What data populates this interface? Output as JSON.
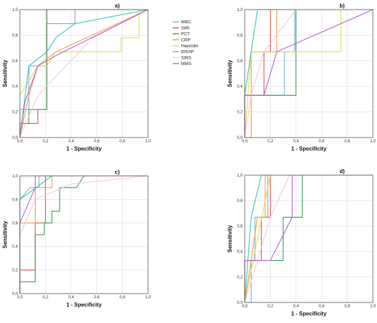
{
  "colors": {
    "WBC": "#6aaed6",
    "SIRI": "#e24a4a",
    "PCT": "#2e9a4c",
    "CRP": "#f39a3c",
    "Hepcidin": "#e3dd3a",
    "BISAP": "#2cc7b6",
    "SIRS": "#f7c6dc",
    "MMS": "#b45ed1"
  },
  "legend": [
    "WBC",
    "SIRI",
    "PCT",
    "CRP",
    "Hepcidin",
    "BISAP",
    "SIRS",
    "MMS"
  ],
  "chart_data": [
    {
      "type": "line",
      "panel": "a)",
      "xlabel": "1 - Specificity",
      "ylabel": "Sensitivity",
      "xlim": [
        0,
        1
      ],
      "ylim": [
        0,
        1
      ],
      "xticks": [
        "0,0",
        "0,2",
        "0,4",
        "0,6",
        "0,8",
        "1,0"
      ],
      "yticks": [
        "0,0",
        "0,2",
        "0,4",
        "0,6",
        "0,8",
        "1,0"
      ],
      "grid": true,
      "series": [
        {
          "name": "WBC",
          "points": [
            [
              0,
              0
            ],
            [
              0,
              0.22
            ],
            [
              0.07,
              0.22
            ],
            [
              0.07,
              0.56
            ],
            [
              0.21,
              0.56
            ],
            [
              0.21,
              0.89
            ],
            [
              0.43,
              0.89
            ],
            [
              0.43,
              1
            ],
            [
              1,
              1
            ]
          ]
        },
        {
          "name": "SIRI",
          "points": [
            [
              0,
              0
            ],
            [
              0,
              0.11
            ],
            [
              0.14,
              0.11
            ],
            [
              0.14,
              0.22
            ],
            [
              0.21,
              0.22
            ],
            [
              0.21,
              1
            ],
            [
              1,
              1
            ]
          ]
        },
        {
          "name": "PCT",
          "points": [
            [
              0,
              0
            ],
            [
              0,
              0.11
            ],
            [
              0.07,
              0.11
            ],
            [
              0.07,
              0.22
            ],
            [
              0.21,
              0.22
            ],
            [
              0.21,
              1
            ],
            [
              1,
              1
            ]
          ]
        },
        {
          "name": "CRP",
          "points": [
            [
              0,
              0
            ],
            [
              0.07,
              0.33
            ],
            [
              0.14,
              0.56
            ],
            [
              0.28,
              0.67
            ],
            [
              1,
              1
            ]
          ]
        },
        {
          "name": "Hepcidin",
          "points": [
            [
              0,
              0.33
            ],
            [
              0.14,
              0.56
            ],
            [
              0.21,
              0.56
            ],
            [
              0.28,
              0.67
            ],
            [
              0.79,
              0.67
            ],
            [
              0.79,
              0.78
            ],
            [
              0.93,
              0.78
            ],
            [
              0.93,
              1
            ],
            [
              1,
              1
            ]
          ]
        },
        {
          "name": "BISAP",
          "points": [
            [
              0,
              0
            ],
            [
              0.07,
              0.56
            ],
            [
              0.21,
              0.67
            ],
            [
              0.28,
              0.78
            ],
            [
              0.43,
              0.89
            ],
            [
              1,
              1
            ]
          ]
        },
        {
          "name": "SIRS",
          "points": [
            [
              0,
              0
            ],
            [
              0.14,
              0.33
            ],
            [
              0.36,
              0.56
            ],
            [
              0.57,
              0.78
            ],
            [
              1,
              1
            ]
          ]
        },
        {
          "name": "MMS",
          "points": [
            [
              0,
              0
            ],
            [
              0.04,
              0.28
            ],
            [
              0.14,
              0.56
            ],
            [
              0.28,
              0.64
            ],
            [
              1,
              1
            ]
          ]
        }
      ]
    },
    {
      "type": "line",
      "panel": "b)",
      "xlabel": "1 - Specificity",
      "ylabel": "Sensitivity",
      "xlim": [
        0,
        1
      ],
      "ylim": [
        0,
        1
      ],
      "xticks": [
        "0,0",
        "0,2",
        "0,4",
        "0,6",
        "0,8",
        "1,0"
      ],
      "yticks": [
        "0,0",
        "0,2",
        "0,4",
        "0,6",
        "0,8",
        "1,0"
      ],
      "grid": true,
      "series": [
        {
          "name": "WBC",
          "points": [
            [
              0,
              0
            ],
            [
              0,
              0.33
            ],
            [
              0.31,
              0.33
            ],
            [
              0.31,
              0.67
            ],
            [
              0.39,
              0.67
            ],
            [
              0.39,
              1
            ],
            [
              1,
              1
            ]
          ]
        },
        {
          "name": "SIRI",
          "points": [
            [
              0,
              0
            ],
            [
              0,
              0.33
            ],
            [
              0.15,
              0.33
            ],
            [
              0.15,
              0.67
            ],
            [
              0.2,
              0.67
            ],
            [
              0.2,
              1
            ],
            [
              1,
              1
            ]
          ]
        },
        {
          "name": "PCT",
          "points": [
            [
              0,
              0
            ],
            [
              0,
              0.33
            ],
            [
              0.4,
              0.33
            ],
            [
              0.4,
              1
            ],
            [
              1,
              1
            ]
          ]
        },
        {
          "name": "CRP",
          "points": [
            [
              0,
              0
            ],
            [
              0.05,
              0
            ],
            [
              0.05,
              0.67
            ],
            [
              0.25,
              0.67
            ],
            [
              0.25,
              1
            ],
            [
              1,
              1
            ]
          ]
        },
        {
          "name": "Hepcidin",
          "points": [
            [
              0,
              0
            ],
            [
              0.05,
              0.67
            ],
            [
              0.75,
              0.67
            ],
            [
              0.75,
              1
            ],
            [
              1,
              1
            ]
          ]
        },
        {
          "name": "BISAP",
          "points": [
            [
              0,
              0
            ],
            [
              0,
              0.33
            ],
            [
              0.05,
              0.67
            ],
            [
              0.1,
              1
            ],
            [
              1,
              1
            ]
          ]
        },
        {
          "name": "SIRS",
          "points": [
            [
              0,
              0
            ],
            [
              0.05,
              0.33
            ],
            [
              0.15,
              0.67
            ],
            [
              0.4,
              1
            ],
            [
              1,
              1
            ]
          ]
        },
        {
          "name": "MMS",
          "points": [
            [
              0,
              0
            ],
            [
              0,
              0.33
            ],
            [
              0.15,
              0.33
            ],
            [
              0.25,
              0.67
            ],
            [
              1,
              1
            ]
          ]
        }
      ]
    },
    {
      "type": "line",
      "panel": "c)",
      "xlabel": "1 - Specificity",
      "ylabel": "Sensitivity",
      "xlim": [
        0,
        1
      ],
      "ylim": [
        0,
        1
      ],
      "xticks": [
        "0,0",
        "0,2",
        "0,4",
        "0,6",
        "0,8",
        "1,0"
      ],
      "yticks": [
        "0,0",
        "0,2",
        "0,4",
        "0,6",
        "0,8",
        "1,0"
      ],
      "grid": true,
      "series": [
        {
          "name": "WBC",
          "points": [
            [
              0,
              0
            ],
            [
              0,
              0.8
            ],
            [
              0.08,
              0.9
            ],
            [
              0.15,
              0.9
            ],
            [
              0.15,
              1
            ],
            [
              1,
              1
            ]
          ]
        },
        {
          "name": "SIRI",
          "points": [
            [
              0,
              0
            ],
            [
              0,
              0.2
            ],
            [
              0.12,
              0.2
            ],
            [
              0.12,
              0.6
            ],
            [
              0.2,
              0.6
            ],
            [
              0.2,
              1
            ],
            [
              1,
              1
            ]
          ]
        },
        {
          "name": "PCT",
          "points": [
            [
              0,
              0
            ],
            [
              0,
              0.1
            ],
            [
              0.12,
              0.1
            ],
            [
              0.12,
              0.5
            ],
            [
              0.19,
              0.5
            ],
            [
              0.19,
              0.6
            ],
            [
              0.25,
              0.6
            ],
            [
              0.25,
              0.7
            ],
            [
              0.31,
              0.7
            ],
            [
              0.31,
              0.9
            ],
            [
              0.44,
              0.9
            ],
            [
              0.5,
              1
            ],
            [
              1,
              1
            ]
          ]
        },
        {
          "name": "CRP",
          "points": [
            [
              0,
              0
            ],
            [
              0,
              0.6
            ],
            [
              0.12,
              0.6
            ],
            [
              0.12,
              0.9
            ],
            [
              0.25,
              0.9
            ],
            [
              0.25,
              1
            ],
            [
              1,
              1
            ]
          ]
        },
        {
          "name": "Hepcidin",
          "points": [
            [
              0,
              0.6
            ],
            [
              0,
              1
            ],
            [
              1,
              1
            ]
          ]
        },
        {
          "name": "BISAP",
          "points": [
            [
              0,
              0
            ],
            [
              0,
              0.8
            ],
            [
              0.25,
              1
            ],
            [
              1,
              1
            ]
          ]
        },
        {
          "name": "SIRS",
          "points": [
            [
              0,
              0.5
            ],
            [
              0.12,
              0.8
            ],
            [
              0.4,
              0.93
            ],
            [
              1,
              1
            ]
          ]
        },
        {
          "name": "MMS",
          "points": [
            [
              0,
              0
            ],
            [
              0,
              0.6
            ],
            [
              0.12,
              0.9
            ],
            [
              0.12,
              1
            ],
            [
              1,
              1
            ]
          ]
        }
      ]
    },
    {
      "type": "line",
      "panel": "d)",
      "xlabel": "1 - Specificity",
      "ylabel": "Sensitivity",
      "xlim": [
        0,
        1
      ],
      "ylim": [
        0,
        1
      ],
      "xticks": [
        "0,0",
        "0,2",
        "0,4",
        "0,6",
        "0,8",
        "1,0"
      ],
      "yticks": [
        "0,0",
        "0,2",
        "0,4",
        "0,6",
        "0,8",
        "1,0"
      ],
      "grid": true,
      "series": [
        {
          "name": "WBC",
          "points": [
            [
              0,
              0
            ],
            [
              0.05,
              0
            ],
            [
              0.05,
              0.33
            ],
            [
              0.08,
              0.33
            ],
            [
              0.08,
              0.67
            ],
            [
              0.18,
              0.67
            ],
            [
              0.18,
              1
            ],
            [
              1,
              1
            ]
          ]
        },
        {
          "name": "SIRI",
          "points": [
            [
              0,
              0
            ],
            [
              0,
              0.33
            ],
            [
              0.13,
              0.33
            ],
            [
              0.13,
              0.67
            ],
            [
              0.2,
              0.67
            ],
            [
              0.2,
              1
            ],
            [
              1,
              1
            ]
          ]
        },
        {
          "name": "PCT",
          "points": [
            [
              0,
              0
            ],
            [
              0,
              0.33
            ],
            [
              0.3,
              0.33
            ],
            [
              0.3,
              0.67
            ],
            [
              0.45,
              0.67
            ],
            [
              0.45,
              1
            ],
            [
              1,
              1
            ]
          ]
        },
        {
          "name": "CRP",
          "points": [
            [
              0,
              0
            ],
            [
              0.1,
              0.67
            ],
            [
              0.16,
              0.67
            ],
            [
              0.16,
              1
            ],
            [
              1,
              1
            ]
          ]
        },
        {
          "name": "Hepcidin",
          "points": [
            [
              0,
              0
            ],
            [
              0.2,
              1
            ],
            [
              1,
              1
            ]
          ]
        },
        {
          "name": "BISAP",
          "points": [
            [
              0,
              0
            ],
            [
              0.05,
              0.67
            ],
            [
              0.13,
              1
            ],
            [
              1,
              1
            ]
          ]
        },
        {
          "name": "SIRS",
          "points": [
            [
              0,
              0
            ],
            [
              0.1,
              0.33
            ],
            [
              0.2,
              0.67
            ],
            [
              0.35,
              1
            ],
            [
              1,
              1
            ]
          ]
        },
        {
          "name": "MMS",
          "points": [
            [
              0,
              0
            ],
            [
              0,
              0.33
            ],
            [
              0.2,
              0.33
            ],
            [
              0.37,
              0.67
            ],
            [
              0.37,
              1
            ],
            [
              1,
              1
            ]
          ]
        }
      ]
    }
  ]
}
